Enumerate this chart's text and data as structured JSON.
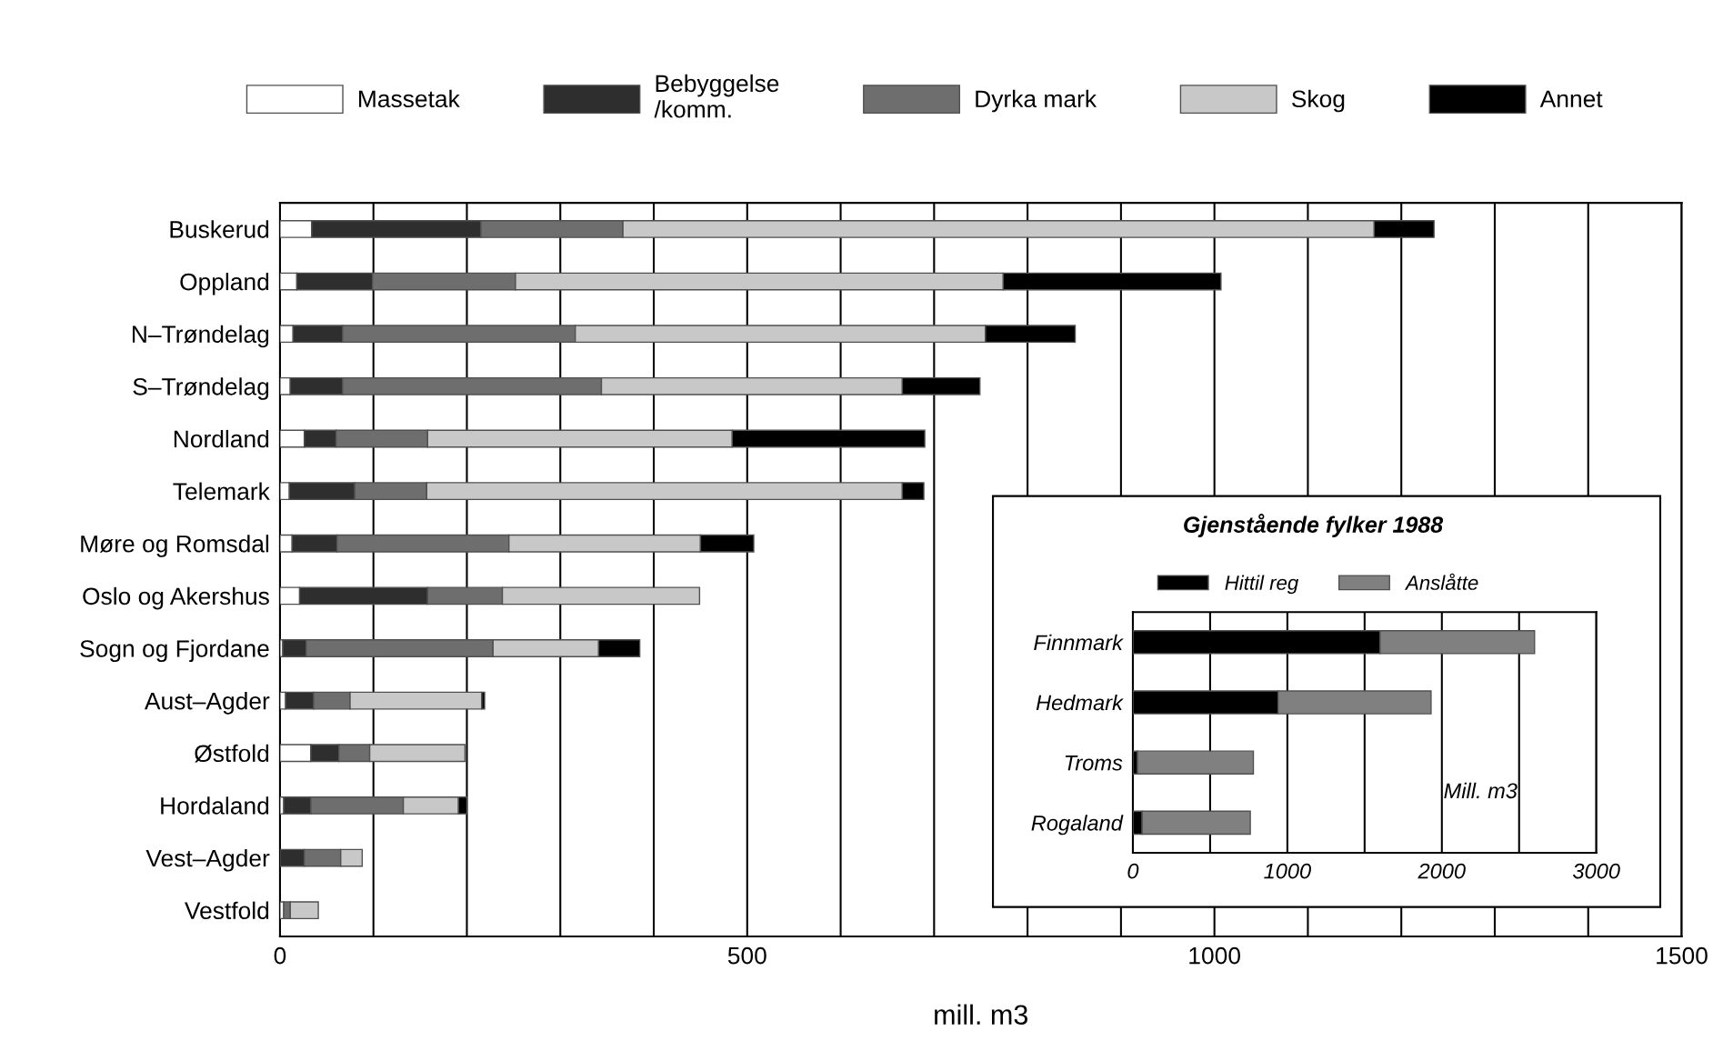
{
  "chart_data": [
    {
      "type": "bar",
      "orientation": "horizontal",
      "stacked": true,
      "categories": [
        "Buskerud",
        "Oppland",
        "N–Trøndelag",
        "S–Trøndelag",
        "Nordland",
        "Telemark",
        "Møre og Romsdal",
        "Oslo og Akershus",
        "Sogn og Fjordane",
        "Aust–Agder",
        "Østfold",
        "Hordaland",
        "Vest–Agder",
        "Vestfold"
      ],
      "series": [
        {
          "name": "Massetak",
          "color": "#ffffff",
          "values": [
            34,
            18,
            14,
            11,
            26,
            10,
            13,
            21,
            3,
            6,
            33,
            4,
            0,
            4
          ]
        },
        {
          "name": "Bebyggelse\n/komm.",
          "color": "#2e2e2e",
          "values": [
            181,
            81,
            53,
            56,
            34,
            70,
            48,
            137,
            25,
            30,
            30,
            29,
            26,
            0
          ]
        },
        {
          "name": "Dyrka mark",
          "color": "#6e6e6e",
          "values": [
            152,
            153,
            249,
            277,
            98,
            77,
            184,
            80,
            200,
            39,
            33,
            99,
            39,
            7
          ]
        },
        {
          "name": "Skog",
          "color": "#c8c8c8",
          "values": [
            804,
            522,
            439,
            322,
            326,
            509,
            205,
            211,
            113,
            141,
            102,
            59,
            23,
            30
          ]
        },
        {
          "name": "Annet",
          "color": "#000000",
          "values": [
            64,
            233,
            96,
            83,
            206,
            23,
            57,
            0,
            44,
            3,
            0,
            9,
            0,
            0
          ]
        }
      ],
      "xlim": [
        0,
        1500
      ],
      "xticks": [
        0,
        {
          "value": 100,
          "label": null
        },
        {
          "value": 200,
          "label": null
        },
        {
          "value": 300,
          "label": null
        },
        {
          "value": 400,
          "label": null
        },
        500,
        {
          "value": 600,
          "label": null
        },
        {
          "value": 700,
          "label": null
        },
        {
          "value": 800,
          "label": null
        },
        {
          "value": 900,
          "label": null
        },
        1000,
        {
          "value": 1100,
          "label": null
        },
        {
          "value": 1200,
          "label": null
        },
        {
          "value": 1300,
          "label": null
        },
        {
          "value": 1400,
          "label": null
        },
        1500
      ],
      "xlabel": "mill. m3",
      "grid": "x",
      "legend": "top"
    },
    {
      "type": "bar",
      "orientation": "horizontal",
      "stacked": true,
      "title": "Gjenstående fylker 1988",
      "categories": [
        "Finnmark",
        "Hedmark",
        "Troms",
        "Rogaland"
      ],
      "series": [
        {
          "name": "Hittil reg",
          "color": "#000000",
          "values": [
            1600,
            940,
            30,
            60
          ]
        },
        {
          "name": "Anslåtte",
          "color": "#808080",
          "values": [
            1000,
            990,
            750,
            700
          ]
        }
      ],
      "xlim": [
        0,
        3000
      ],
      "xticks": [
        0,
        {
          "value": 500,
          "label": null
        },
        1000,
        {
          "value": 1500,
          "label": null
        },
        2000,
        {
          "value": 2500,
          "label": null
        },
        3000
      ],
      "annotations": [
        "Mill. m3"
      ],
      "grid": "x",
      "legend": "top"
    }
  ]
}
